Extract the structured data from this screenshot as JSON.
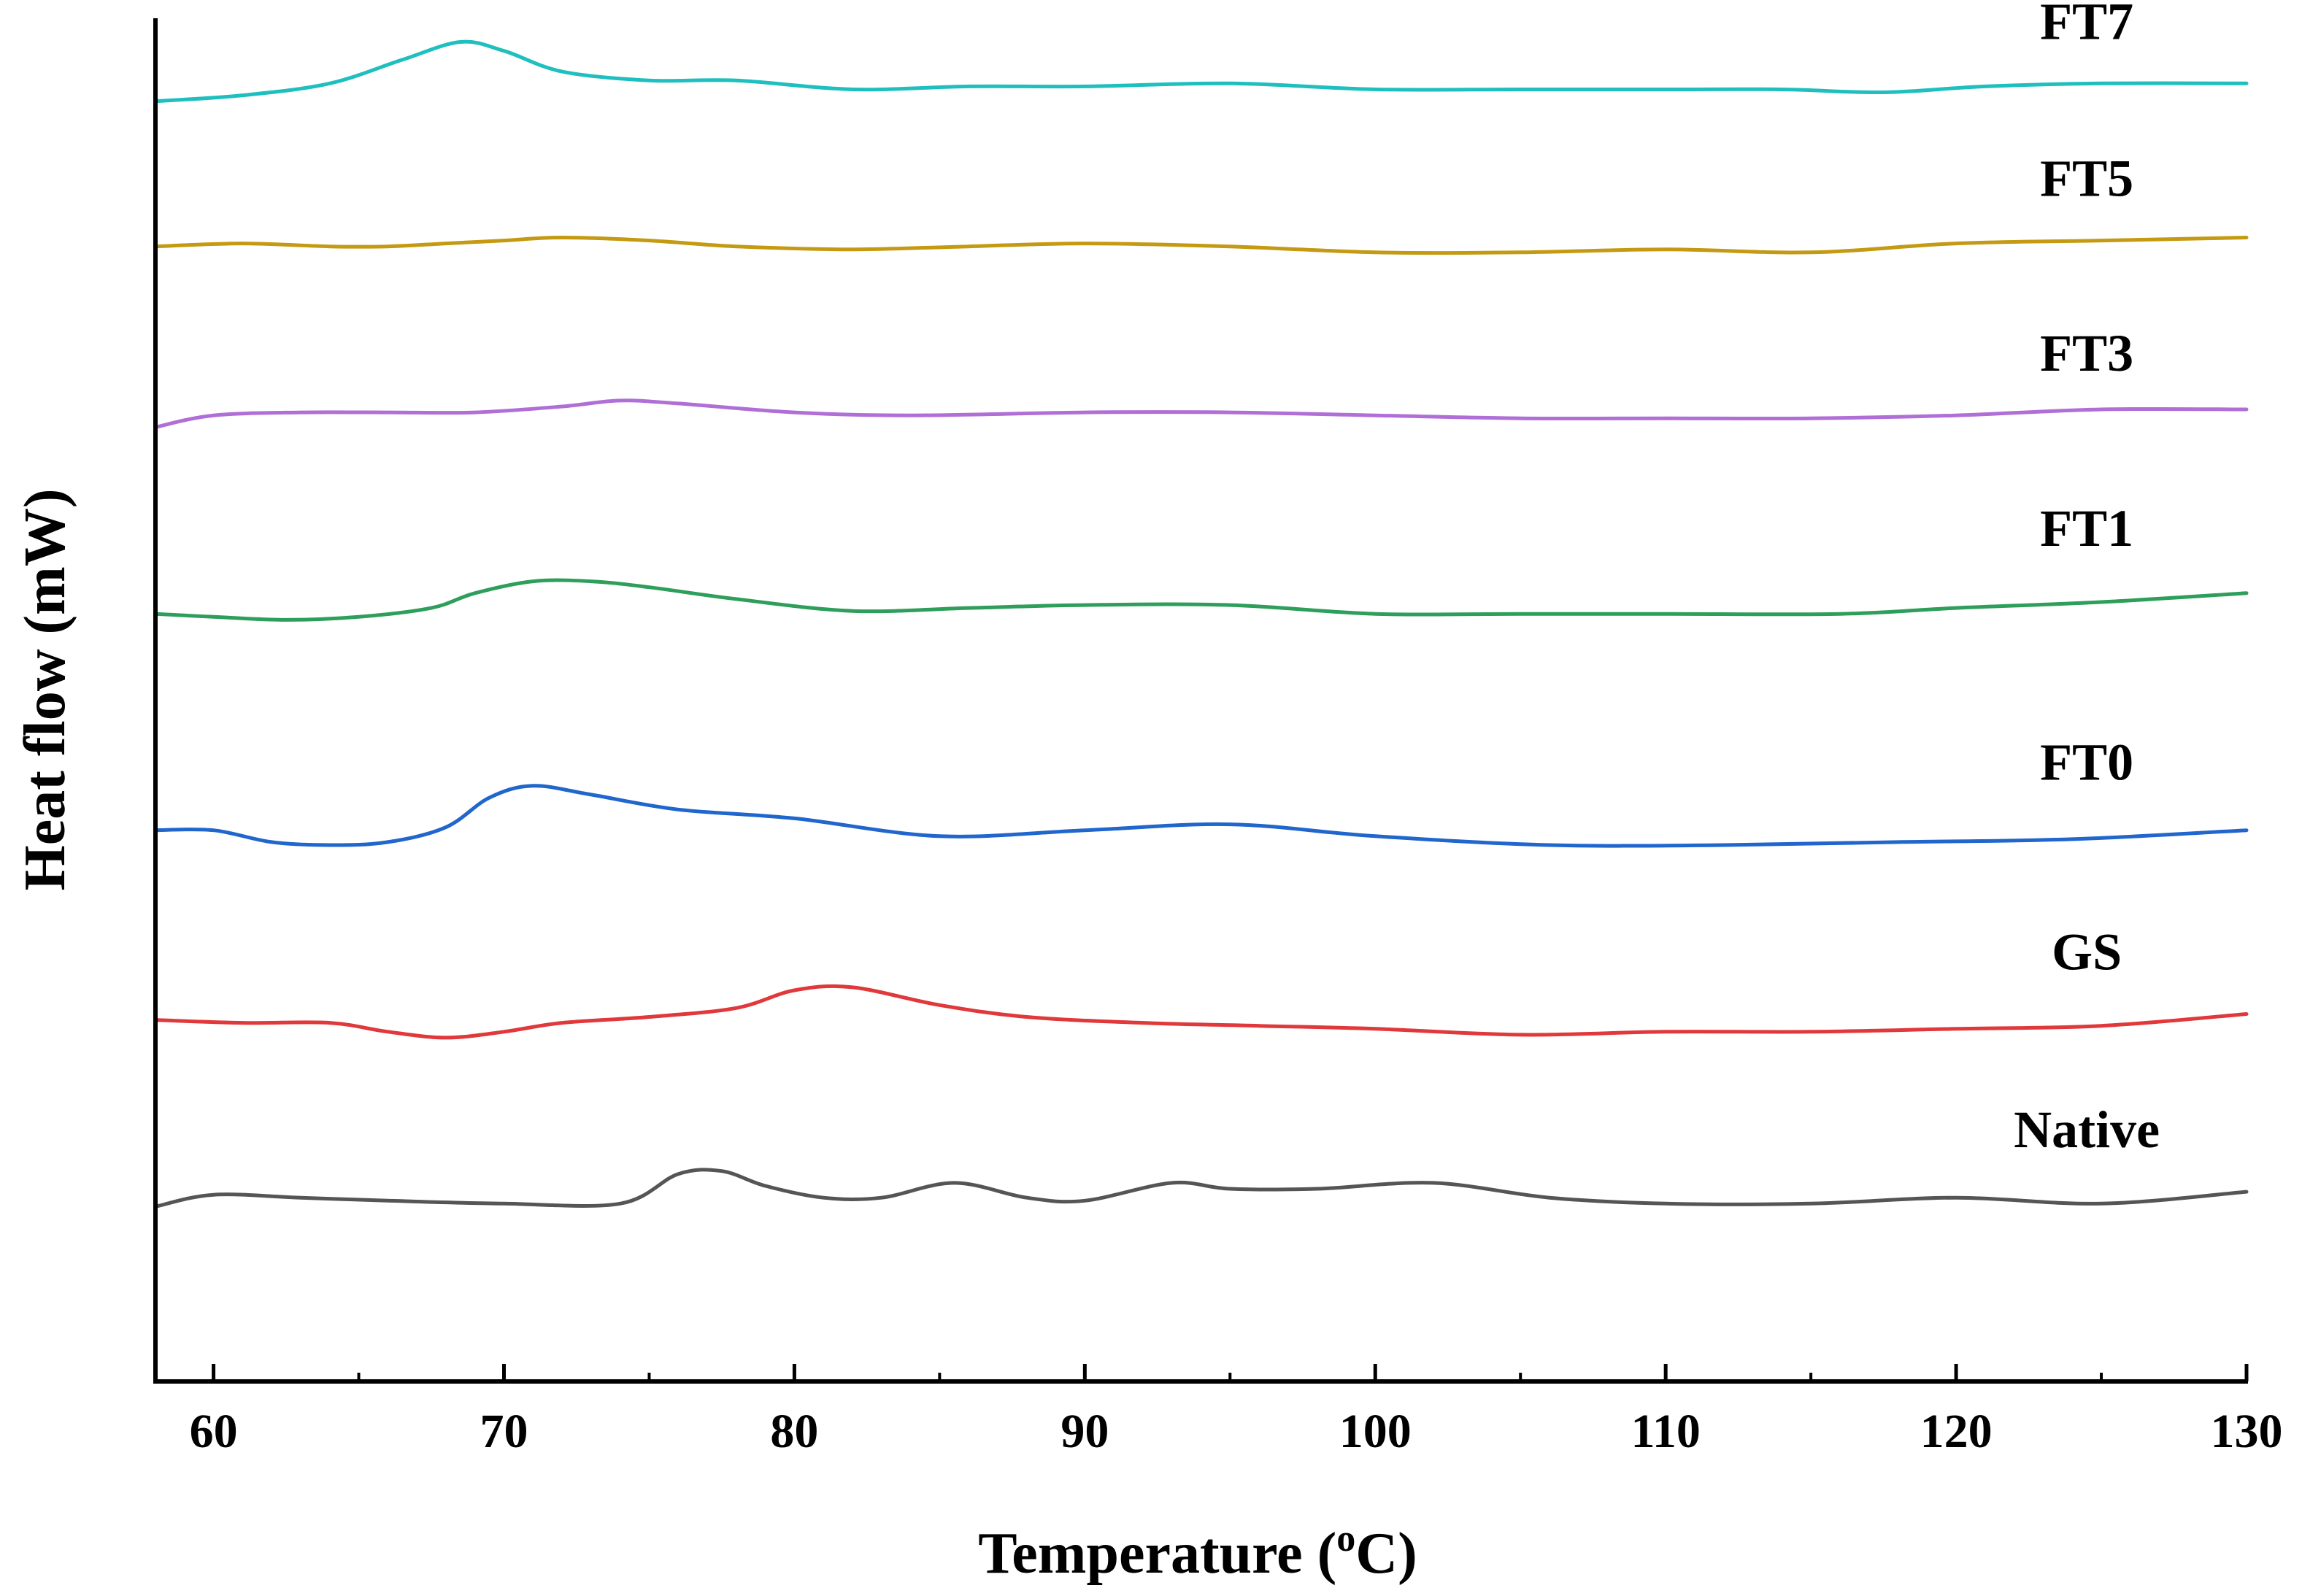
{
  "chart_data": {
    "type": "line",
    "title": "",
    "xlabel": "Temperature (",
    "xlabel_sup": "o",
    "xlabel_tail": "C)",
    "ylabel": "Heat flow (mW)",
    "xlim": [
      58,
      130
    ],
    "ylim": [
      0,
      46
    ],
    "x_ticks": [
      60,
      70,
      80,
      90,
      100,
      110,
      120,
      130
    ],
    "y_tick_labels_shown": false,
    "grid": false,
    "legend": "inline-labels-right",
    "series": [
      {
        "name": "FT7",
        "color": "#1fbfbf",
        "label": "FT7",
        "label_x": 124.5,
        "label_y": 45.3,
        "x": [
          58,
          61,
          64,
          66.5,
          68.5,
          70,
          72,
          75,
          78,
          82,
          86,
          90,
          95,
          100,
          105,
          110,
          114,
          117.5,
          121,
          125,
          130
        ],
        "y": [
          43.2,
          43.4,
          43.8,
          44.6,
          45.2,
          44.9,
          44.2,
          43.9,
          43.9,
          43.6,
          43.7,
          43.7,
          43.8,
          43.6,
          43.6,
          43.6,
          43.6,
          43.5,
          43.7,
          43.8,
          43.8
        ]
      },
      {
        "name": "FT5",
        "color": "#c49a12",
        "label": "FT5",
        "label_x": 124.5,
        "label_y": 40.0,
        "x": [
          58,
          61,
          64,
          66,
          68,
          70,
          72,
          75,
          78,
          82,
          86,
          90,
          95,
          100,
          105,
          110,
          115,
          120,
          125,
          130
        ],
        "y": [
          38.3,
          38.4,
          38.3,
          38.3,
          38.4,
          38.5,
          38.6,
          38.5,
          38.3,
          38.2,
          38.3,
          38.4,
          38.3,
          38.1,
          38.1,
          38.2,
          38.1,
          38.4,
          38.5,
          38.6
        ]
      },
      {
        "name": "FT3",
        "color": "#b06fd6",
        "label": "FT3",
        "label_x": 124.5,
        "label_y": 34.1,
        "x": [
          58,
          60,
          63,
          66,
          69,
          72,
          74,
          76,
          80,
          84,
          90,
          95,
          100,
          105,
          110,
          115,
          120,
          125,
          130
        ],
        "y": [
          32.2,
          32.6,
          32.7,
          32.7,
          32.7,
          32.9,
          33.1,
          33.0,
          32.7,
          32.6,
          32.7,
          32.7,
          32.6,
          32.5,
          32.5,
          32.5,
          32.6,
          32.8,
          32.8
        ]
      },
      {
        "name": "FT1",
        "color": "#2e9e5b",
        "label": "FT1",
        "label_x": 124.5,
        "label_y": 28.2,
        "x": [
          58,
          60,
          62.5,
          65,
          67.5,
          69,
          71,
          73,
          75,
          78,
          82,
          86,
          90,
          95,
          100,
          105,
          110,
          116,
          120,
          125,
          130
        ],
        "y": [
          25.9,
          25.8,
          25.7,
          25.8,
          26.1,
          26.6,
          27.0,
          27.0,
          26.8,
          26.4,
          26.0,
          26.1,
          26.2,
          26.2,
          25.9,
          25.9,
          25.9,
          25.9,
          26.1,
          26.3,
          26.6
        ]
      },
      {
        "name": "FT0",
        "color": "#2066cc",
        "label": "FT0",
        "label_x": 124.5,
        "label_y": 20.3,
        "x": [
          58,
          60,
          62,
          64,
          66,
          68,
          69.5,
          71,
          73,
          76,
          80,
          85,
          90,
          95,
          100,
          106,
          112,
          118,
          124,
          130
        ],
        "y": [
          18.6,
          18.6,
          18.2,
          18.1,
          18.2,
          18.7,
          19.7,
          20.1,
          19.8,
          19.3,
          19.0,
          18.4,
          18.6,
          18.8,
          18.4,
          18.1,
          18.1,
          18.2,
          18.3,
          18.6
        ]
      },
      {
        "name": "GS",
        "color": "#e0383b",
        "label": "GS",
        "label_x": 124.5,
        "label_y": 13.9,
        "x": [
          58,
          61,
          64,
          66,
          68,
          70,
          72,
          75,
          78,
          80,
          82,
          85,
          88,
          92,
          96,
          100,
          105,
          110,
          115,
          120,
          125,
          130
        ],
        "y": [
          12.2,
          12.1,
          12.1,
          11.8,
          11.6,
          11.8,
          12.1,
          12.3,
          12.6,
          13.2,
          13.3,
          12.7,
          12.3,
          12.1,
          12.0,
          11.9,
          11.7,
          11.8,
          11.8,
          11.9,
          12.0,
          12.4
        ]
      },
      {
        "name": "Native",
        "color": "#555555",
        "label": "Native",
        "label_x": 124.5,
        "label_y": 7.9,
        "x": [
          58,
          60,
          63,
          66,
          70,
          74,
          76,
          77.5,
          79,
          81,
          83,
          85.5,
          88,
          90,
          93,
          95,
          98,
          102,
          106,
          110,
          115,
          120,
          125,
          130
        ],
        "y": [
          5.9,
          6.3,
          6.2,
          6.1,
          6.0,
          6.0,
          7.0,
          7.1,
          6.6,
          6.2,
          6.2,
          6.7,
          6.2,
          6.1,
          6.7,
          6.5,
          6.5,
          6.7,
          6.2,
          6.0,
          6.0,
          6.2,
          6.0,
          6.4
        ]
      }
    ]
  }
}
